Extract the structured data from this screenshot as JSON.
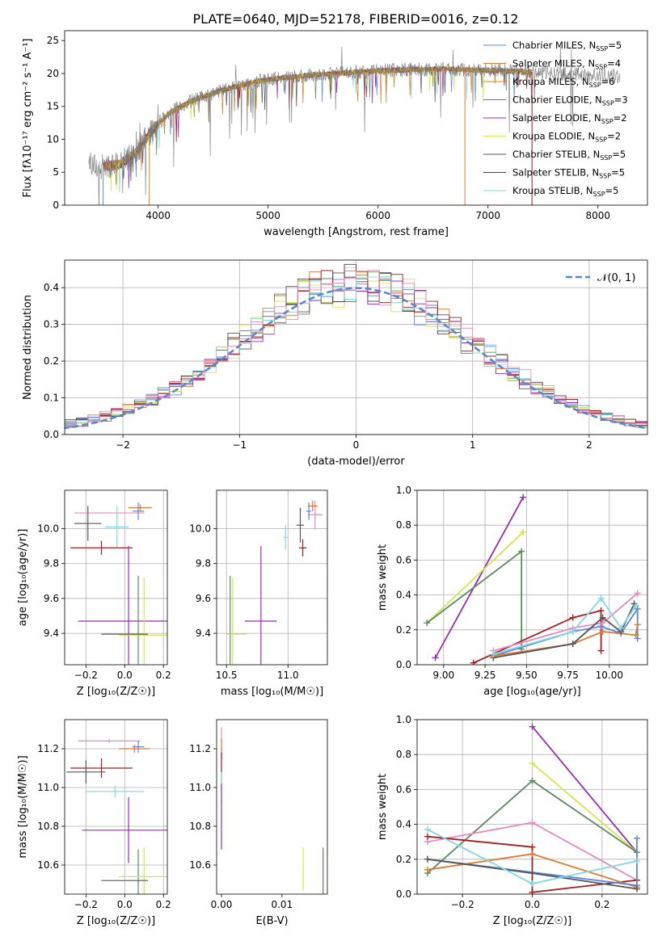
{
  "figure": {
    "title": "PLATE=0640, MJD=52178, FIBERID=0016, z=0.12"
  },
  "model_names": [
    "Chabrier MILES",
    "Salpeter MILES",
    "Kroupa MILES",
    "Chabrier ELODIE",
    "Salpeter ELODIE",
    "Kroupa ELODIE",
    "Chabrier STELIB",
    "Salpeter STELIB",
    "Kroupa STELIB"
  ],
  "colors": [
    "#5b86e6",
    "#e07a2e",
    "#d0891a",
    "#5a8a5e",
    "#9b2bb8",
    "#cfe84a",
    "#555555",
    "#a61c1c",
    "#7fd9e0"
  ],
  "pink_color": "#e88ac0",
  "chart_data": [
    {
      "id": "spectrum",
      "type": "line",
      "title": "PLATE=0640, MJD=52178, FIBERID=0016, z=0.12",
      "xlabel": "wavelength [Angstrom, rest frame]",
      "ylabel": "Flux [fλ10⁻¹⁷ erg cm⁻² s⁻¹ A⁻¹]",
      "xlim": [
        3150,
        8450
      ],
      "ylim": [
        0,
        26.5
      ],
      "xticks": [
        4000,
        5000,
        6000,
        7000,
        8000
      ],
      "yticks": [
        0,
        5,
        10,
        15,
        20,
        25
      ],
      "grid": false,
      "legend_position": "right",
      "legend": [
        "Chabrier MILES, N_SSP=5",
        "Salpeter MILES, N_SSP=4",
        "Kroupa MILES, N_SSP=6",
        "Chabrier ELODIE, N_SSP=3",
        "Salpeter ELODIE, N_SSP=2",
        "Kroupa ELODIE, N_SSP=2",
        "Chabrier STELIB, N_SSP=5",
        "Salpeter STELIB, N_SSP=5",
        "Kroupa STELIB, N_SSP=5"
      ],
      "continuum": {
        "x": [
          3370,
          3500,
          3650,
          3800,
          3950,
          4100,
          4300,
          4500,
          4700,
          4900,
          5100,
          5300,
          5500,
          5800,
          6000,
          6300,
          6600,
          6900,
          7200,
          7500,
          7800,
          8000,
          8200
        ],
        "y": [
          6.3,
          5.9,
          6.2,
          8.0,
          11.5,
          14.0,
          15.8,
          17.0,
          18.0,
          18.8,
          19.3,
          19.6,
          19.9,
          20.2,
          20.4,
          20.6,
          20.7,
          20.5,
          20.4,
          20.1,
          19.9,
          19.7,
          19.5
        ]
      },
      "model_xrange": [
        3500,
        7400
      ],
      "observed_xrange": [
        3370,
        8200
      ]
    },
    {
      "id": "residuals",
      "type": "line",
      "xlabel": "(data-model)/error",
      "ylabel": "Normed distribution",
      "xlim": [
        -2.5,
        2.5
      ],
      "ylim": [
        0,
        0.475
      ],
      "xticks": [
        -2,
        -1,
        0,
        1,
        2
      ],
      "yticks": [
        0.0,
        0.1,
        0.2,
        0.3,
        0.4
      ],
      "grid": true,
      "legend_position": "top-right",
      "legend": [
        "𝒩(0, 1)"
      ],
      "bin_width": 0.1,
      "reference_curve": "normal(0,1)"
    },
    {
      "id": "age_vs_Z",
      "type": "scatter",
      "xlabel": "Z [log₁₀(Z/Z☉)]",
      "ylabel": "age  [log₁₀(age/yr)]",
      "xlim": [
        -0.31,
        0.22
      ],
      "ylim": [
        9.22,
        10.22
      ],
      "xticks": [
        -0.2,
        0.0,
        0.2
      ],
      "yticks": [
        9.4,
        9.6,
        9.8,
        10.0
      ],
      "grid": true,
      "errorbars": [
        {
          "color": "pink",
          "x": -0.08,
          "y": 10.09,
          "xerr": 0.18,
          "yerr": 0.0
        },
        {
          "color": 0,
          "x": 0.07,
          "y": 10.1,
          "xerr": 0.03,
          "yerr": 0.05
        },
        {
          "color": 1,
          "x": 0.08,
          "y": 10.12,
          "xerr": 0.06,
          "yerr": 0.02
        },
        {
          "color": 6,
          "x": -0.19,
          "y": 10.03,
          "xerr": 0.07,
          "yerr": 0.1
        },
        {
          "color": 8,
          "x": -0.04,
          "y": 10.01,
          "xerr": 0.06,
          "yerr": 0.12
        },
        {
          "color": 7,
          "x": -0.12,
          "y": 9.89,
          "xerr": 0.16,
          "yerr": 0.04
        },
        {
          "color": 4,
          "x": 0.02,
          "y": 9.47,
          "xerr": 0.26,
          "yerr": 0.43
        },
        {
          "color": 3,
          "x": 0.07,
          "y": 9.4,
          "xerr": 0.0,
          "yerr": 0.33
        },
        {
          "color": 5,
          "x": 0.1,
          "y": 9.39,
          "xerr": 0.13,
          "yerr": 0.33
        },
        {
          "color": 6,
          "x": 0.0,
          "y": 9.395,
          "xerr": 0.12,
          "yerr": 0.0
        }
      ]
    },
    {
      "id": "age_vs_mass",
      "type": "scatter",
      "xlabel": "mass [log₁₀(M/M☉)]",
      "ylabel": "",
      "xlim": [
        10.42,
        11.32
      ],
      "ylim": [
        9.22,
        10.22
      ],
      "xticks": [
        10.5,
        11.0
      ],
      "yticks": [
        9.4,
        9.6,
        9.8,
        10.0
      ],
      "grid": true,
      "errorbars": [
        {
          "color": "pink",
          "x": 11.22,
          "y": 10.08,
          "xerr": 0.06,
          "yerr": 0.08
        },
        {
          "color": 1,
          "x": 11.2,
          "y": 10.13,
          "xerr": 0.04,
          "yerr": 0.03
        },
        {
          "color": 0,
          "x": 11.17,
          "y": 10.1,
          "xerr": 0.02,
          "yerr": 0.05
        },
        {
          "color": 6,
          "x": 11.1,
          "y": 10.02,
          "xerr": 0.03,
          "yerr": 0.1
        },
        {
          "color": 8,
          "x": 10.98,
          "y": 9.95,
          "xerr": 0.02,
          "yerr": 0.07
        },
        {
          "color": 7,
          "x": 11.12,
          "y": 9.89,
          "xerr": 0.03,
          "yerr": 0.05
        },
        {
          "color": 4,
          "x": 10.78,
          "y": 9.47,
          "xerr": 0.13,
          "yerr": 0.43
        },
        {
          "color": 3,
          "x": 10.53,
          "y": 9.4,
          "xerr": 0.0,
          "yerr": 0.33
        },
        {
          "color": 5,
          "x": 10.55,
          "y": 9.39,
          "xerr": 0.0,
          "yerr": 0.33
        },
        {
          "color": 5,
          "x": 10.58,
          "y": 9.395,
          "xerr": 0.08,
          "yerr": 0.0
        }
      ]
    },
    {
      "id": "weight_vs_age",
      "type": "line",
      "xlabel": "age  [log₁₀(age/yr)]",
      "ylabel": "mass weight",
      "xlim": [
        8.84,
        10.23
      ],
      "ylim": [
        0,
        1.0
      ],
      "xticks": [
        9.0,
        9.25,
        9.5,
        9.75,
        10.0
      ],
      "yticks": [
        0.0,
        0.2,
        0.4,
        0.6,
        0.8,
        1.0
      ],
      "grid": true,
      "series": [
        {
          "color": 4,
          "x": [
            8.95,
            9.48
          ],
          "y": [
            0.04,
            0.96
          ]
        },
        {
          "color": 5,
          "x": [
            8.9,
            9.48
          ],
          "y": [
            0.24,
            0.76
          ]
        },
        {
          "color": 3,
          "x": [
            8.9,
            9.47,
            9.47
          ],
          "y": [
            0.24,
            0.65,
            0.09
          ]
        },
        {
          "color": 7,
          "x": [
            9.18,
            9.78,
            9.95,
            9.95
          ],
          "y": [
            0.01,
            0.27,
            0.31,
            0.08
          ]
        },
        {
          "color": 0,
          "x": [
            9.3,
            9.78,
            9.95,
            10.07,
            10.17,
            10.17
          ],
          "y": [
            0.05,
            0.19,
            0.22,
            0.18,
            0.32,
            0.15
          ]
        },
        {
          "color": 1,
          "x": [
            9.3,
            9.78,
            9.96,
            10.16,
            10.17
          ],
          "y": [
            0.05,
            0.12,
            0.19,
            0.17,
            0.23
          ]
        },
        {
          "color": "pink",
          "x": [
            9.3,
            9.78,
            9.96,
            10.17
          ],
          "y": [
            0.08,
            0.21,
            0.24,
            0.41
          ]
        },
        {
          "color": 6,
          "x": [
            9.3,
            9.78,
            9.96,
            10.07,
            10.15
          ],
          "y": [
            0.04,
            0.12,
            0.27,
            0.19,
            0.35
          ]
        },
        {
          "color": 8,
          "x": [
            9.3,
            9.78,
            9.95,
            10.07,
            10.16
          ],
          "y": [
            0.06,
            0.19,
            0.38,
            0.21,
            0.34
          ]
        }
      ]
    },
    {
      "id": "mass_vs_Z",
      "type": "scatter",
      "xlabel": "Z [log₁₀(Z/Z☉)]",
      "ylabel": "mass [log₁₀(M/M☉)]",
      "xlim": [
        -0.31,
        0.22
      ],
      "ylim": [
        10.45,
        11.35
      ],
      "xticks": [
        -0.2,
        0.0,
        0.2
      ],
      "yticks": [
        10.6,
        10.8,
        11.0,
        11.2
      ],
      "grid": true,
      "errorbars": [
        {
          "color": "pink",
          "x": -0.08,
          "y": 11.24,
          "xerr": 0.16,
          "yerr": 0.01
        },
        {
          "color": 0,
          "x": 0.07,
          "y": 11.21,
          "xerr": 0.03,
          "yerr": 0.03
        },
        {
          "color": 1,
          "x": 0.05,
          "y": 11.2,
          "xerr": 0.08,
          "yerr": 0.02
        },
        {
          "color": 7,
          "x": -0.12,
          "y": 11.1,
          "xerr": 0.16,
          "yerr": 0.05
        },
        {
          "color": 6,
          "x": -0.2,
          "y": 11.08,
          "xerr": 0.1,
          "yerr": 0.06
        },
        {
          "color": 8,
          "x": -0.05,
          "y": 10.98,
          "xerr": 0.15,
          "yerr": 0.03
        },
        {
          "color": 4,
          "x": 0.02,
          "y": 10.78,
          "xerr": 0.24,
          "yerr": 0.17
        },
        {
          "color": 3,
          "x": 0.07,
          "y": 10.52,
          "xerr": 0.0,
          "yerr": 0.16
        },
        {
          "color": 5,
          "x": 0.1,
          "y": 10.54,
          "xerr": 0.13,
          "yerr": 0.15
        },
        {
          "color": 6,
          "x": 0.0,
          "y": 10.52,
          "xerr": 0.12,
          "yerr": 0.0
        }
      ]
    },
    {
      "id": "mass_vs_EBV",
      "type": "scatter",
      "xlabel": "E(B-V)",
      "ylabel": "",
      "xlim": [
        -0.0008,
        0.0175
      ],
      "ylim": [
        10.45,
        11.35
      ],
      "xticks": [
        0.0,
        0.01
      ],
      "tick_labels": [
        "0.00",
        "0.01"
      ],
      "yticks": [
        10.6,
        10.8,
        11.0,
        11.2
      ],
      "grid": false,
      "errorbars": [
        {
          "color": "pink",
          "x": 0.0,
          "y": 11.23,
          "xerr": 0.0,
          "yerr": 0.08
        },
        {
          "color": 1,
          "x": 0.0,
          "y": 11.2,
          "xerr": 0.0,
          "yerr": 0.05
        },
        {
          "color": 7,
          "x": 0.0,
          "y": 11.1,
          "xerr": 0.0,
          "yerr": 0.08
        },
        {
          "color": 8,
          "x": 0.0,
          "y": 11.0,
          "xerr": 0.0,
          "yerr": 0.08
        },
        {
          "color": 4,
          "x": 0.0,
          "y": 10.85,
          "xerr": 0.0,
          "yerr": 0.17
        },
        {
          "color": 5,
          "x": 0.0135,
          "y": 10.58,
          "xerr": 0.0,
          "yerr": 0.11
        },
        {
          "color": 3,
          "x": 0.0168,
          "y": 10.57,
          "xerr": 0.0,
          "yerr": 0.12
        }
      ]
    },
    {
      "id": "weight_vs_Z",
      "type": "line",
      "xlabel": "Z [log₁₀(Z/Z☉)]",
      "ylabel": "mass weight",
      "xlim": [
        -0.33,
        0.33
      ],
      "ylim": [
        0,
        1.0
      ],
      "xticks": [
        -0.2,
        0.0,
        0.2
      ],
      "yticks": [
        0.0,
        0.2,
        0.4,
        0.6,
        0.8,
        1.0
      ],
      "grid": true,
      "series": [
        {
          "color": 4,
          "x": [
            0.0,
            0.3
          ],
          "y": [
            0.96,
            0.24
          ]
        },
        {
          "color": 5,
          "x": [
            0.0,
            0.3
          ],
          "y": [
            0.75,
            0.24
          ]
        },
        {
          "color": 3,
          "x": [
            -0.3,
            0.0,
            0.3
          ],
          "y": [
            0.12,
            0.65,
            0.24
          ]
        },
        {
          "color": "pink",
          "x": [
            -0.3,
            0.0,
            0.3
          ],
          "y": [
            0.3,
            0.41,
            0.08
          ]
        },
        {
          "color": 7,
          "x": [
            -0.3,
            0.0,
            0.0,
            0.3
          ],
          "y": [
            0.33,
            0.27,
            0.01,
            0.08
          ]
        },
        {
          "color": 1,
          "x": [
            -0.3,
            0.0,
            0.3
          ],
          "y": [
            0.14,
            0.23,
            0.04
          ]
        },
        {
          "color": 0,
          "x": [
            -0.3,
            0.3,
            0.3
          ],
          "y": [
            0.2,
            0.05,
            0.32
          ]
        },
        {
          "color": 6,
          "x": [
            -0.3,
            0.0,
            0.3
          ],
          "y": [
            0.2,
            0.12,
            0.03
          ]
        },
        {
          "color": 8,
          "x": [
            -0.3,
            0.0,
            0.3
          ],
          "y": [
            0.37,
            0.06,
            0.19
          ]
        }
      ]
    }
  ]
}
